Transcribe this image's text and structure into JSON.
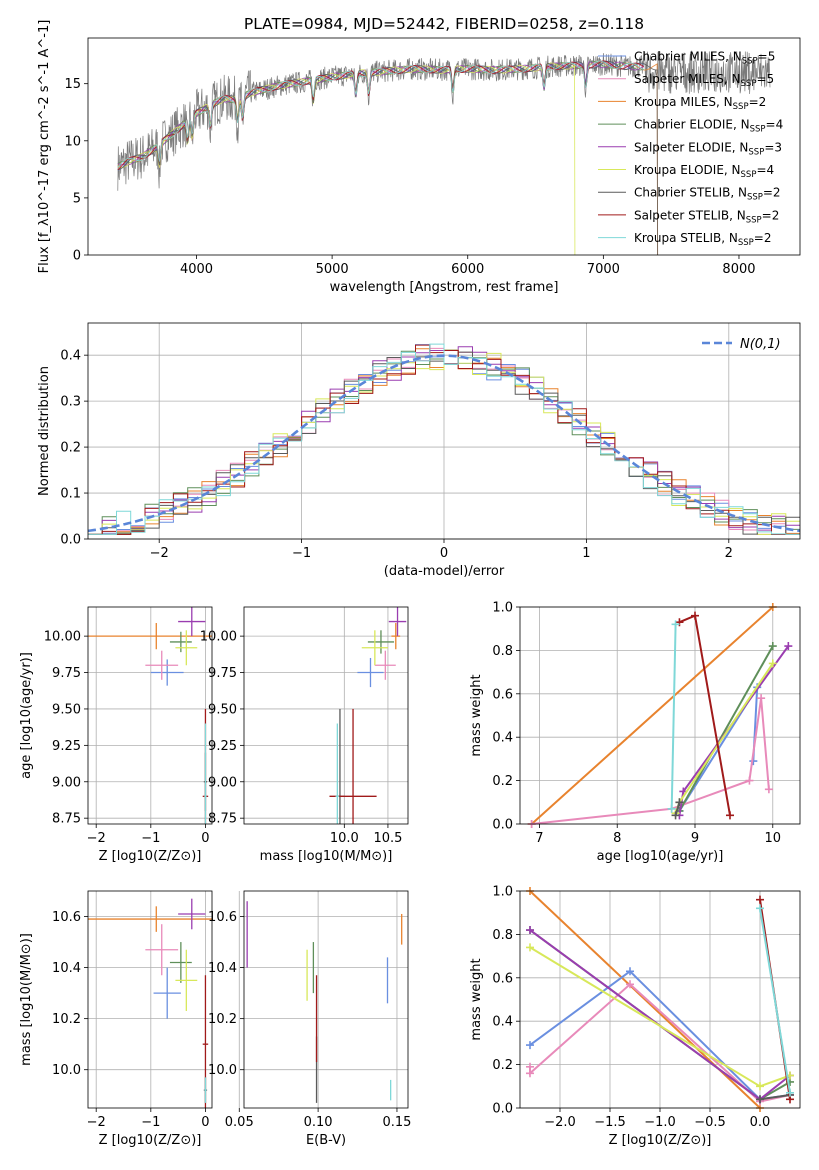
{
  "title": "PLATE=0984, MJD=52442, FIBERID=0258, z=0.118",
  "colors": {
    "Chabrier MILES": "#6a8fe0",
    "Salpeter MILES": "#e88aba",
    "Kroupa MILES": "#e8832e",
    "Chabrier ELODIE": "#5f8f5a",
    "Salpeter ELODIE": "#9a3db0",
    "Kroupa ELODIE": "#d8e85a",
    "Chabrier STELIB": "#5a5a5a",
    "Salpeter STELIB": "#a01a1a",
    "Kroupa STELIB": "#7fd8d8"
  },
  "chart_data": [
    {
      "id": "spectrum",
      "type": "line",
      "xlabel": "wavelength [Angstrom, rest frame]",
      "ylabel": "Flux [f_λ10^-17 erg cm^-2 s^-1 A^-1]",
      "xlim": [
        3200,
        8450
      ],
      "ylim": [
        0,
        19
      ],
      "xticks": [
        "4000",
        "5000",
        "6000",
        "7000",
        "8000"
      ],
      "yticks": [
        "0",
        "5",
        "10",
        "15"
      ],
      "legend_position": "top-right",
      "legend": [
        {
          "name": "Chabrier MILES",
          "nssp": "5"
        },
        {
          "name": "Salpeter MILES",
          "nssp": "5"
        },
        {
          "name": "Kroupa MILES",
          "nssp": "2"
        },
        {
          "name": "Chabrier ELODIE",
          "nssp": "4"
        },
        {
          "name": "Salpeter ELODIE",
          "nssp": "3"
        },
        {
          "name": "Kroupa ELODIE",
          "nssp": "4"
        },
        {
          "name": "Chabrier STELIB",
          "nssp": "2"
        },
        {
          "name": "Salpeter STELIB",
          "nssp": "2"
        },
        {
          "name": "Kroupa STELIB",
          "nssp": "2"
        }
      ],
      "continuum": [
        [
          3400,
          7.6
        ],
        [
          3500,
          8.2
        ],
        [
          3600,
          8.6
        ],
        [
          3700,
          9.4
        ],
        [
          3800,
          10.4
        ],
        [
          3900,
          11.4
        ],
        [
          4000,
          12.4
        ],
        [
          4100,
          13.1
        ],
        [
          4200,
          13.7
        ],
        [
          4300,
          13.6
        ],
        [
          4400,
          14.2
        ],
        [
          4600,
          14.8
        ],
        [
          4800,
          15.2
        ],
        [
          5000,
          15.6
        ],
        [
          5200,
          15.9
        ],
        [
          5400,
          16.1
        ],
        [
          5600,
          16.3
        ],
        [
          5800,
          16.2
        ],
        [
          6000,
          16.3
        ],
        [
          6200,
          16.2
        ],
        [
          6400,
          16.3
        ],
        [
          6600,
          16.5
        ],
        [
          6800,
          16.6
        ],
        [
          7000,
          16.7
        ],
        [
          7200,
          16.5
        ]
      ]
    },
    {
      "id": "residuals",
      "type": "bar",
      "xlabel": "(data-model)/error",
      "ylabel": "Normed distribution",
      "xlim": [
        -2.5,
        2.5
      ],
      "ylim": [
        0,
        0.47
      ],
      "xticks": [
        "−2",
        "−1",
        "0",
        "1",
        "2"
      ],
      "yticks": [
        "0.0",
        "0.1",
        "0.2",
        "0.3",
        "0.4"
      ],
      "legend_position": "top-right",
      "reference_curve": "N(0,1)",
      "bin_width": 0.1,
      "bin_start": -2.5
    },
    {
      "id": "age_vs_Z",
      "type": "scatter",
      "xlabel": "Z [log10(Z/Z⊙)]",
      "ylabel": "age [log10(age/yr)]",
      "xlim": [
        -2.15,
        0.12
      ],
      "ylim": [
        8.71,
        10.2
      ],
      "xticks": [
        "−2",
        "−1",
        "0"
      ],
      "yticks": [
        "8.75",
        "9.00",
        "9.25",
        "9.50",
        "9.75",
        "10.00"
      ],
      "points": [
        {
          "model": "Chabrier MILES",
          "x": -0.7,
          "y": 9.75,
          "xerr": 0.3,
          "yerr": 0.09
        },
        {
          "model": "Salpeter MILES",
          "x": -0.8,
          "y": 9.8,
          "xerr": 0.3,
          "yerr": 0.1
        },
        {
          "model": "Kroupa MILES",
          "x": -0.9,
          "y": 10.0,
          "xerr": 1.25,
          "yerr": 0.09
        },
        {
          "model": "Chabrier ELODIE",
          "x": -0.45,
          "y": 9.96,
          "xerr": 0.2,
          "yerr": 0.07
        },
        {
          "model": "Salpeter ELODIE",
          "x": -0.25,
          "y": 10.1,
          "xerr": 0.25,
          "yerr": 0.1
        },
        {
          "model": "Kroupa ELODIE",
          "x": -0.35,
          "y": 9.92,
          "xerr": 0.2,
          "yerr": 0.12
        },
        {
          "model": "Chabrier STELIB",
          "x": 0.0,
          "y": 9.0,
          "xerr": 0.03,
          "yerr": 0.2
        },
        {
          "model": "Salpeter STELIB",
          "x": 0.0,
          "y": 8.9,
          "xerr": 0.05,
          "yerr": 0.6
        },
        {
          "model": "Kroupa STELIB",
          "x": 0.0,
          "y": 8.9,
          "xerr": 0.02,
          "yerr": 0.5
        }
      ]
    },
    {
      "id": "age_vs_mass",
      "type": "scatter",
      "xlabel": "mass [log10(M/M⊙)]",
      "ylabel": "",
      "xlim": [
        8.85,
        10.73
      ],
      "ylim": [
        8.71,
        10.2
      ],
      "xticks": [
        "10.0",
        "10.5"
      ],
      "yticks": [
        "8.75",
        "9.00",
        "9.25",
        "9.50",
        "9.75",
        "10.00"
      ],
      "points": [
        {
          "model": "Chabrier MILES",
          "x": 10.3,
          "y": 9.75,
          "xerr": 0.15,
          "yerr": 0.1
        },
        {
          "model": "Salpeter MILES",
          "x": 10.47,
          "y": 9.8,
          "xerr": 0.12,
          "yerr": 0.1
        },
        {
          "model": "Kroupa MILES",
          "x": 10.59,
          "y": 10.0,
          "xerr": 0.05,
          "yerr": 0.09
        },
        {
          "model": "Chabrier ELODIE",
          "x": 10.42,
          "y": 9.96,
          "xerr": 0.15,
          "yerr": 0.08
        },
        {
          "model": "Salpeter ELODIE",
          "x": 10.61,
          "y": 10.1,
          "xerr": 0.1,
          "yerr": 0.1
        },
        {
          "model": "Kroupa ELODIE",
          "x": 10.35,
          "y": 9.92,
          "xerr": 0.15,
          "yerr": 0.12
        },
        {
          "model": "Chabrier STELIB",
          "x": 9.95,
          "y": 8.9,
          "xerr": 0.05,
          "yerr": 0.6
        },
        {
          "model": "Salpeter STELIB",
          "x": 10.1,
          "y": 8.9,
          "xerr": 0.27,
          "yerr": 0.6
        },
        {
          "model": "Kroupa STELIB",
          "x": 9.92,
          "y": 8.9,
          "xerr": 0.02,
          "yerr": 0.5
        }
      ]
    },
    {
      "id": "mass_weight_vs_age",
      "type": "line",
      "xlabel": "age [log10(age/yr)]",
      "ylabel": "mass weight",
      "xlim": [
        6.75,
        10.35
      ],
      "ylim": [
        0,
        1.0
      ],
      "xticks": [
        "7",
        "8",
        "9",
        "10"
      ],
      "yticks": [
        "0.0",
        "0.2",
        "0.4",
        "0.6",
        "0.8",
        "1.0"
      ],
      "series": [
        {
          "model": "Kroupa MILES",
          "x": [
            6.9,
            10.0
          ],
          "y": [
            0.0,
            1.0
          ]
        },
        {
          "model": "Chabrier MILES",
          "x": [
            8.8,
            9.8,
            9.75
          ],
          "y": [
            0.06,
            0.63,
            0.29
          ]
        },
        {
          "model": "Salpeter MILES",
          "x": [
            6.9,
            8.7,
            9.7,
            9.85,
            9.95
          ],
          "y": [
            0.0,
            0.07,
            0.2,
            0.58,
            0.16
          ]
        },
        {
          "model": "Chabrier ELODIE",
          "x": [
            8.8,
            10.0
          ],
          "y": [
            0.06,
            0.82
          ]
        },
        {
          "model": "Salpeter ELODIE",
          "x": [
            8.8,
            8.85,
            10.2
          ],
          "y": [
            0.04,
            0.15,
            0.82
          ]
        },
        {
          "model": "Kroupa ELODIE",
          "x": [
            8.75,
            8.8,
            10.0
          ],
          "y": [
            0.05,
            0.1,
            0.74
          ]
        },
        {
          "model": "Chabrier STELIB",
          "x": [
            8.75,
            8.8
          ],
          "y": [
            0.04,
            0.1
          ]
        },
        {
          "model": "Salpeter STELIB",
          "x": [
            8.8,
            9.0,
            9.45
          ],
          "y": [
            0.93,
            0.96,
            0.04
          ]
        },
        {
          "model": "Kroupa STELIB",
          "x": [
            8.7,
            8.75
          ],
          "y": [
            0.07,
            0.92
          ]
        }
      ]
    },
    {
      "id": "mass_vs_Z",
      "type": "scatter",
      "xlabel": "Z [log10(Z/Z⊙)]",
      "ylabel": "mass [log10(M/M⊙)]",
      "xlim": [
        -2.15,
        0.12
      ],
      "ylim": [
        9.85,
        10.7
      ],
      "xticks": [
        "−2",
        "−1",
        "0"
      ],
      "yticks": [
        "10.0",
        "10.2",
        "10.4",
        "10.6"
      ],
      "points": [
        {
          "model": "Chabrier MILES",
          "x": -0.7,
          "y": 10.3,
          "xerr": 0.25,
          "yerr": 0.1
        },
        {
          "model": "Salpeter MILES",
          "x": -0.8,
          "y": 10.47,
          "xerr": 0.3,
          "yerr": 0.1
        },
        {
          "model": "Kroupa MILES",
          "x": -0.9,
          "y": 10.59,
          "xerr": 1.25,
          "yerr": 0.05
        },
        {
          "model": "Chabrier ELODIE",
          "x": -0.45,
          "y": 10.42,
          "xerr": 0.2,
          "yerr": 0.08
        },
        {
          "model": "Salpeter ELODIE",
          "x": -0.25,
          "y": 10.61,
          "xerr": 0.25,
          "yerr": 0.06
        },
        {
          "model": "Kroupa ELODIE",
          "x": -0.35,
          "y": 10.35,
          "xerr": 0.2,
          "yerr": 0.12
        },
        {
          "model": "Chabrier STELIB",
          "x": 0.0,
          "y": 9.92,
          "xerr": 0.03,
          "yerr": 0.05
        },
        {
          "model": "Salpeter STELIB",
          "x": 0.0,
          "y": 10.1,
          "xerr": 0.05,
          "yerr": 0.27
        },
        {
          "model": "Kroupa STELIB",
          "x": 0.0,
          "y": 9.92,
          "xerr": 0.02,
          "yerr": 0.05
        }
      ]
    },
    {
      "id": "mass_vs_ebv",
      "type": "scatter",
      "xlabel": "E(B-V)",
      "ylabel": "",
      "xlim": [
        0.053,
        0.157
      ],
      "ylim": [
        9.85,
        10.7
      ],
      "xticks": [
        "0.05",
        "0.10",
        "0.15"
      ],
      "yticks": [
        "10.0",
        "10.2",
        "10.4",
        "10.6"
      ],
      "points": [
        {
          "model": "Chabrier MILES",
          "x": 0.144,
          "y": 10.35,
          "yerr": 0.09
        },
        {
          "model": "Kroupa MILES",
          "x": 0.153,
          "y": 10.55,
          "yerr": 0.06
        },
        {
          "model": "Chabrier ELODIE",
          "x": 0.097,
          "y": 10.4,
          "yerr": 0.1
        },
        {
          "model": "Salpeter ELODIE",
          "x": 0.055,
          "y": 10.53,
          "yerr": 0.13
        },
        {
          "model": "Kroupa ELODIE",
          "x": 0.093,
          "y": 10.37,
          "yerr": 0.1
        },
        {
          "model": "Chabrier STELIB",
          "x": 0.099,
          "y": 10.0,
          "yerr": 0.13
        },
        {
          "model": "Salpeter STELIB",
          "x": 0.099,
          "y": 10.2,
          "yerr": 0.17
        },
        {
          "model": "Kroupa STELIB",
          "x": 0.146,
          "y": 9.92,
          "yerr": 0.04
        }
      ]
    },
    {
      "id": "mass_weight_vs_Z",
      "type": "line",
      "xlabel": "Z [log10(Z/Z⊙)]",
      "ylabel": "mass weight",
      "xlim": [
        -2.4,
        0.4
      ],
      "ylim": [
        0,
        1.0
      ],
      "xticks": [
        "−2.0",
        "−1.5",
        "−1.0",
        "−0.5",
        "0.0"
      ],
      "yticks": [
        "0.0",
        "0.2",
        "0.4",
        "0.6",
        "0.8",
        "1.0"
      ],
      "series": [
        {
          "model": "Kroupa MILES",
          "x": [
            -2.3,
            0.0
          ],
          "y": [
            1.0,
            0.0
          ]
        },
        {
          "model": "Chabrier MILES",
          "x": [
            -2.3,
            -1.3,
            0.0,
            0.3
          ],
          "y": [
            0.29,
            0.63,
            0.04,
            0.06
          ]
        },
        {
          "model": "Salpeter MILES",
          "x": [
            -2.3,
            -2.3,
            -1.3,
            0.0,
            0.3
          ],
          "y": [
            0.19,
            0.16,
            0.57,
            0.03,
            0.06
          ]
        },
        {
          "model": "Chabrier ELODIE",
          "x": [
            -2.3,
            0.0,
            0.3
          ],
          "y": [
            0.82,
            0.04,
            0.12
          ]
        },
        {
          "model": "Salpeter ELODIE",
          "x": [
            -2.3,
            0.0,
            0.3
          ],
          "y": [
            0.82,
            0.04,
            0.15
          ]
        },
        {
          "model": "Kroupa ELODIE",
          "x": [
            -2.3,
            0.0,
            0.3
          ],
          "y": [
            0.74,
            0.1,
            0.15
          ]
        },
        {
          "model": "Chabrier STELIB",
          "x": [
            0.0,
            0.3
          ],
          "y": [
            0.04,
            0.06
          ]
        },
        {
          "model": "Salpeter STELIB",
          "x": [
            0.0,
            0.3
          ],
          "y": [
            0.96,
            0.04
          ]
        },
        {
          "model": "Kroupa STELIB",
          "x": [
            0.0,
            0.3
          ],
          "y": [
            0.92,
            0.07
          ]
        }
      ]
    }
  ]
}
